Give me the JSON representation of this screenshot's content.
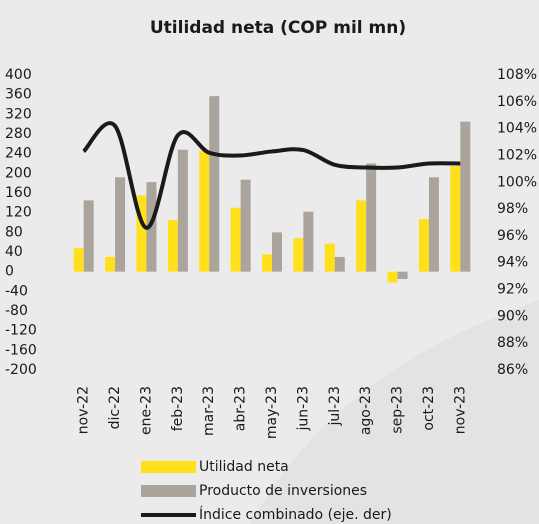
{
  "chart_data": {
    "type": "bar",
    "title": "Utilidad neta (COP mil mn)",
    "categories": [
      "nov-22",
      "dic-22",
      "ene-23",
      "feb-23",
      "mar-23",
      "abr-23",
      "may-23",
      "jun-23",
      "jul-23",
      "ago-23",
      "sep-23",
      "oct-23",
      "nov-23"
    ],
    "series": [
      {
        "name": "Utilidad neta",
        "color": "#ffe01b",
        "values": [
          48,
          30,
          155,
          105,
          245,
          130,
          35,
          68,
          57,
          145,
          -22,
          107,
          215
        ]
      },
      {
        "name": "Producto de inversiones",
        "color": "#aaa49c",
        "values": [
          145,
          192,
          182,
          248,
          357,
          187,
          80,
          122,
          30,
          220,
          -15,
          192,
          305
        ]
      },
      {
        "name": "Índice combinado (eje. der)",
        "color": "#1a1a1a",
        "type": "line",
        "axis": "y2",
        "values": [
          102.3,
          104.2,
          96.6,
          103.5,
          102.2,
          102.0,
          102.3,
          102.4,
          101.3,
          101.1,
          101.1,
          101.4,
          101.4
        ]
      }
    ],
    "ylim": [
      -200,
      400
    ],
    "yticks": [
      400,
      360,
      320,
      280,
      240,
      200,
      160,
      120,
      80,
      40,
      0,
      -40,
      -80,
      -120,
      -160,
      -200
    ],
    "y2lim": [
      86,
      108
    ],
    "y2ticks": [
      {
        "value": 108,
        "label": "108%"
      },
      {
        "value": 106,
        "label": "106%"
      },
      {
        "value": 104,
        "label": "104%"
      },
      {
        "value": 102,
        "label": "102%"
      },
      {
        "value": 100,
        "label": "100%"
      },
      {
        "value": 98,
        "label": "98%"
      },
      {
        "value": 96,
        "label": "96%"
      },
      {
        "value": 94,
        "label": "94%"
      },
      {
        "value": 92,
        "label": "92%"
      },
      {
        "value": 90,
        "label": "90%"
      },
      {
        "value": 88,
        "label": "88%"
      },
      {
        "value": 86,
        "label": "86%"
      }
    ],
    "grid": false,
    "legend": "bottom"
  }
}
